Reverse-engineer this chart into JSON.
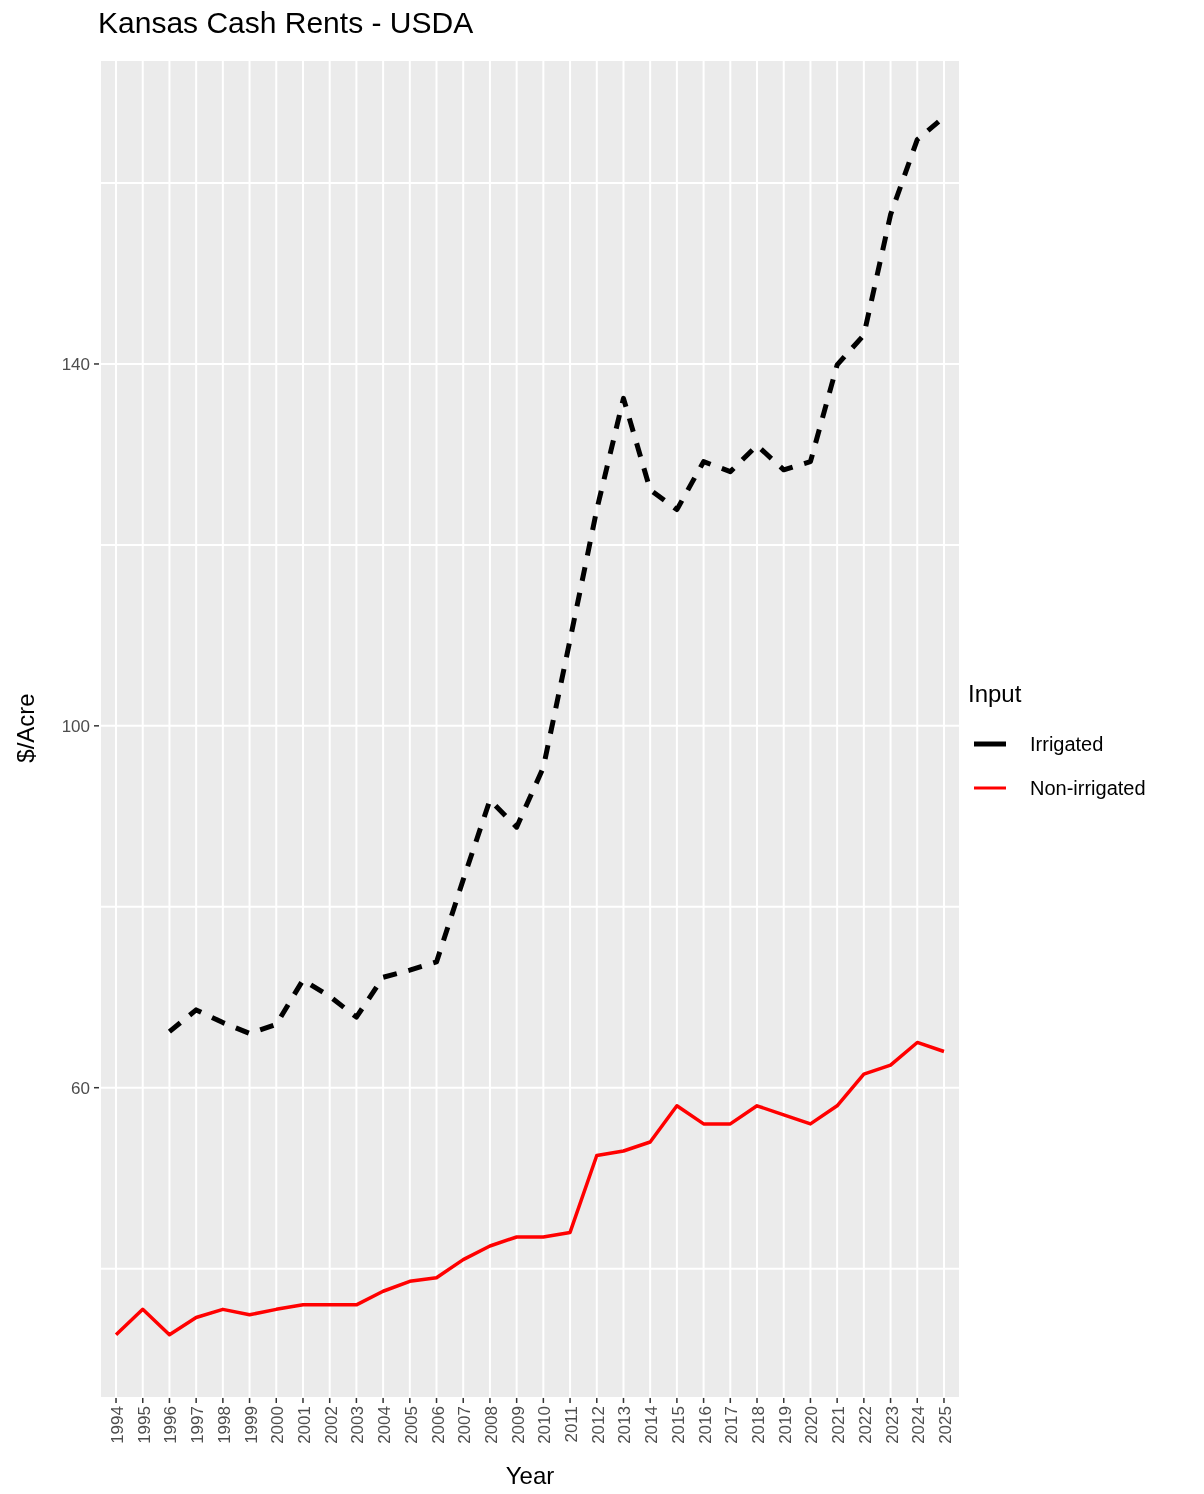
{
  "chart_data": {
    "type": "line",
    "title": "Kansas Cash Rents - USDA",
    "xlabel": "Year",
    "ylabel": "$/Acre",
    "legend_title": "Input",
    "categories": [
      "1994",
      "1995",
      "1996",
      "1997",
      "1998",
      "1999",
      "2000",
      "2001",
      "2002",
      "2003",
      "2004",
      "2005",
      "2006",
      "2007",
      "2008",
      "2009",
      "2010",
      "2011",
      "2012",
      "2013",
      "2014",
      "2015",
      "2016",
      "2017",
      "2018",
      "2019",
      "2020",
      "2021",
      "2022",
      "2023",
      "2024",
      "2025"
    ],
    "series": [
      {
        "name": "Irrigated",
        "color": "#000000",
        "line_style": "dashed",
        "values": [
          null,
          null,
          66.2,
          68.6,
          67.2,
          66.0,
          67.0,
          71.9,
          70.1,
          67.8,
          72.2,
          73.0,
          73.9,
          83.0,
          91.8,
          88.8,
          95.4,
          109.5,
          123.9,
          136.2,
          126.1,
          123.9,
          129.2,
          128.1,
          131.0,
          128.3,
          129.2,
          139.9,
          143.2,
          156.5,
          164.8,
          167.3
        ]
      },
      {
        "name": "Non-irrigated",
        "color": "#ff0000",
        "line_style": "solid",
        "values": [
          32.7,
          35.5,
          32.7,
          34.6,
          35.5,
          34.9,
          35.5,
          36.0,
          36.0,
          36.0,
          37.5,
          38.6,
          39.0,
          41.0,
          42.5,
          43.5,
          43.5,
          44.0,
          52.5,
          53.0,
          54.0,
          58.0,
          56.0,
          56.0,
          58.0,
          57.0,
          56.0,
          58.0,
          61.5,
          62.5,
          65.0,
          64.0
        ]
      }
    ],
    "ylim": [
      25.7,
      173.6
    ],
    "yticks": [
      {
        "value": 40,
        "label": null
      },
      60,
      {
        "value": 80,
        "label": null
      },
      100,
      {
        "value": 120,
        "label": null
      },
      140,
      {
        "value": 160,
        "label": null
      }
    ],
    "grid": true,
    "legend": "right",
    "marker": "none"
  }
}
